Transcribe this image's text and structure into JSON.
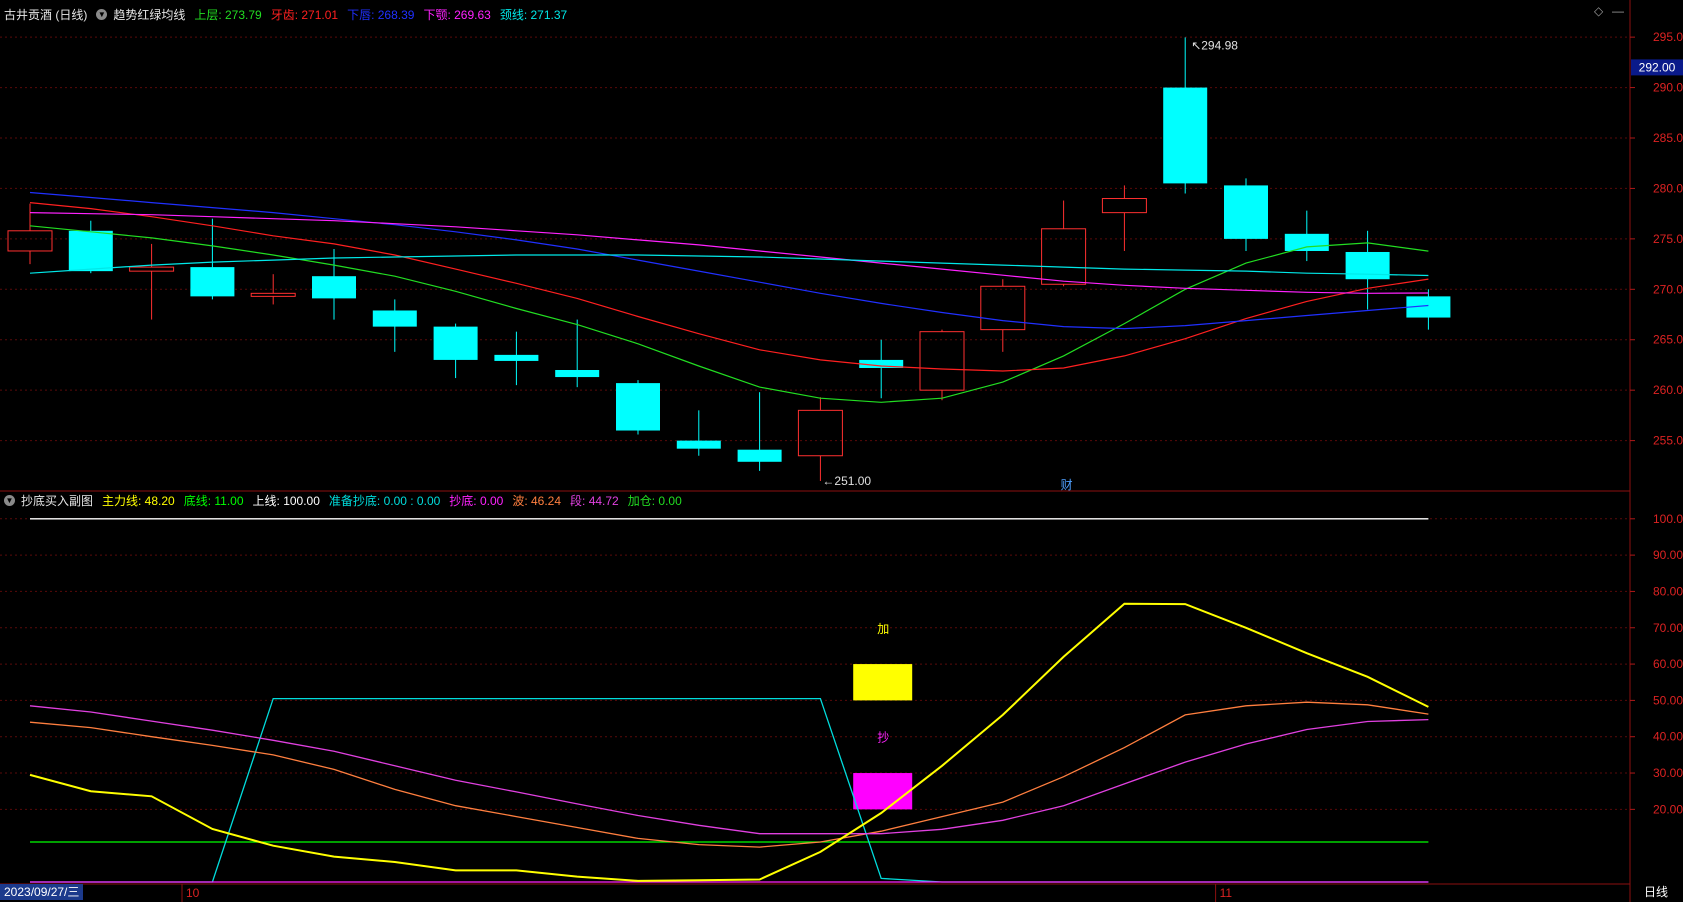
{
  "top_header": {
    "stock": "古井贡酒 (日线)",
    "indicator": "趋势红绿均线",
    "items": [
      {
        "label": "上层: 273.79",
        "color": "#22dd22"
      },
      {
        "label": "牙齿: 271.01",
        "color": "#ff2020"
      },
      {
        "label": "下唇: 268.39",
        "color": "#2030ff"
      },
      {
        "label": "下颚: 269.63",
        "color": "#ff22ff"
      },
      {
        "label": "颈线: 271.37",
        "color": "#00e8e8"
      }
    ]
  },
  "sub_header": {
    "title": "抄底买入副图",
    "items": [
      {
        "label": "主力线: 48.20",
        "color": "#ffff00"
      },
      {
        "label": "底线: 11.00",
        "color": "#00ff00"
      },
      {
        "label": "上线: 100.00",
        "color": "#ffffff"
      },
      {
        "label": "准备抄底: 0.00 : 0.00",
        "color": "#00dddd"
      },
      {
        "label": "抄底: 0.00",
        "color": "#ff22ff"
      },
      {
        "label": "波: 46.24",
        "color": "#ff7f3f"
      },
      {
        "label": "段: 44.72",
        "color": "#e040e0"
      },
      {
        "label": "加仓: 0.00",
        "color": "#22dd22"
      }
    ]
  },
  "corner_icons": {
    "diamond": "◇",
    "dash": "—"
  },
  "price_tag": "292.00",
  "date_label": "2023/09/27/三",
  "period_label": "日线",
  "x_labels": [
    {
      "text": "10",
      "index": 2.5
    },
    {
      "text": "11",
      "index": 19.5
    }
  ],
  "chart_data": [
    {
      "type": "candlestick",
      "ylim": [
        250.5,
        296.5
      ],
      "yticks": [
        "255.0",
        "260.0",
        "265.0",
        "270.0",
        "275.0",
        "280.0",
        "285.0",
        "290.0",
        "295.0"
      ],
      "candles": [
        {
          "o": 273.8,
          "h": 278.5,
          "l": 272.5,
          "c": 275.8
        },
        {
          "o": 275.8,
          "h": 276.8,
          "l": 271.6,
          "c": 271.8
        },
        {
          "o": 271.8,
          "h": 274.5,
          "l": 267.0,
          "c": 272.2
        },
        {
          "o": 272.2,
          "h": 277.0,
          "l": 269.0,
          "c": 269.3
        },
        {
          "o": 269.3,
          "h": 271.5,
          "l": 268.5,
          "c": 269.6
        },
        {
          "o": 271.3,
          "h": 274.0,
          "l": 267.0,
          "c": 269.1
        },
        {
          "o": 267.9,
          "h": 269.0,
          "l": 263.8,
          "c": 266.3
        },
        {
          "o": 266.3,
          "h": 266.6,
          "l": 261.2,
          "c": 263.0
        },
        {
          "o": 263.5,
          "h": 265.8,
          "l": 260.5,
          "c": 262.9
        },
        {
          "o": 262.0,
          "h": 267.0,
          "l": 260.3,
          "c": 261.3
        },
        {
          "o": 260.7,
          "h": 261.0,
          "l": 255.6,
          "c": 256.0
        },
        {
          "o": 255.0,
          "h": 258.0,
          "l": 253.5,
          "c": 254.2
        },
        {
          "o": 254.1,
          "h": 259.8,
          "l": 252.0,
          "c": 252.9
        },
        {
          "o": 253.5,
          "h": 259.3,
          "l": 251.0,
          "c": 258.0
        },
        {
          "o": 263.0,
          "h": 265.0,
          "l": 259.2,
          "c": 262.2
        },
        {
          "o": 260.0,
          "h": 266.0,
          "l": 259.0,
          "c": 265.8
        },
        {
          "o": 266.0,
          "h": 271.0,
          "l": 263.8,
          "c": 270.3
        },
        {
          "o": 270.5,
          "h": 278.8,
          "l": 270.3,
          "c": 276.0
        },
        {
          "o": 277.6,
          "h": 280.3,
          "l": 273.8,
          "c": 279.0
        },
        {
          "o": 290.0,
          "h": 294.98,
          "l": 279.5,
          "c": 280.5
        },
        {
          "o": 280.3,
          "h": 281.0,
          "l": 273.8,
          "c": 275.0
        },
        {
          "o": 275.5,
          "h": 277.8,
          "l": 272.8,
          "c": 273.8
        },
        {
          "o": 273.7,
          "h": 275.8,
          "l": 268.0,
          "c": 271.0
        },
        {
          "o": 269.3,
          "h": 270.0,
          "l": 266.0,
          "c": 267.2
        }
      ],
      "series": [
        {
          "name": "上层",
          "color": "#22dd22",
          "values": [
            276.3,
            275.7,
            275.1,
            274.3,
            273.4,
            272.4,
            271.3,
            269.8,
            268.1,
            266.5,
            264.6,
            262.4,
            260.3,
            259.2,
            258.8,
            259.2,
            260.8,
            263.4,
            266.6,
            270.0,
            272.6,
            274.2,
            274.6,
            273.79
          ]
        },
        {
          "name": "牙齿",
          "color": "#ff2020",
          "values": [
            278.6,
            278.0,
            277.2,
            276.3,
            275.3,
            274.5,
            273.4,
            272.0,
            270.6,
            269.1,
            267.3,
            265.6,
            264.0,
            263.0,
            262.4,
            262.1,
            261.9,
            262.2,
            263.4,
            265.1,
            267.1,
            268.8,
            270.1,
            271.01
          ]
        },
        {
          "name": "下唇",
          "color": "#2030ff",
          "values": [
            279.6,
            279.1,
            278.6,
            278.1,
            277.6,
            277.0,
            276.4,
            275.7,
            274.9,
            274.0,
            272.9,
            271.8,
            270.7,
            269.6,
            268.6,
            267.7,
            266.9,
            266.3,
            266.1,
            266.4,
            266.9,
            267.4,
            267.9,
            268.39
          ]
        },
        {
          "name": "下颚",
          "color": "#ff22ff",
          "values": [
            277.6,
            277.5,
            277.4,
            277.2,
            277.0,
            276.8,
            276.5,
            276.2,
            275.8,
            275.4,
            274.9,
            274.4,
            273.8,
            273.2,
            272.6,
            272.0,
            271.4,
            270.8,
            270.4,
            270.1,
            269.9,
            269.7,
            269.6,
            269.63
          ]
        },
        {
          "name": "颈线",
          "color": "#00e8e8",
          "values": [
            271.6,
            272.0,
            272.4,
            272.7,
            272.9,
            273.1,
            273.2,
            273.3,
            273.4,
            273.4,
            273.4,
            273.3,
            273.2,
            273.0,
            272.8,
            272.6,
            272.4,
            272.2,
            272.0,
            271.9,
            271.8,
            271.6,
            271.5,
            271.37
          ]
        }
      ],
      "annotations": [
        {
          "text": "294.98",
          "index": 19,
          "value": 294.98
        },
        {
          "text": "251.00",
          "index": 13,
          "value": 251.0
        },
        {
          "text": "财",
          "index": 17,
          "value": 251.0
        }
      ]
    },
    {
      "type": "line",
      "ylim": [
        0,
        106
      ],
      "yticks": [
        "20.00",
        "30.00",
        "40.00",
        "50.00",
        "60.00",
        "70.00",
        "80.00",
        "90.00",
        "100.0"
      ],
      "series": [
        {
          "name": "主力线",
          "color": "#ffff00",
          "values": [
            29.5,
            25,
            23.6,
            14.6,
            10,
            7,
            5.5,
            3.2,
            3.2,
            1.5,
            0.3,
            0.5,
            0.7,
            8.3,
            19,
            32,
            46,
            62,
            76.6,
            76.5,
            70,
            63,
            56.5,
            48.2
          ]
        },
        {
          "name": "底线",
          "color": "#00ff00",
          "values": [
            11,
            11,
            11,
            11,
            11,
            11,
            11,
            11,
            11,
            11,
            11,
            11,
            11,
            11,
            11,
            11,
            11,
            11,
            11,
            11,
            11,
            11,
            11,
            11
          ]
        },
        {
          "name": "上线",
          "color": "#ffffff",
          "values": [
            100,
            100,
            100,
            100,
            100,
            100,
            100,
            100,
            100,
            100,
            100,
            100,
            100,
            100,
            100,
            100,
            100,
            100,
            100,
            100,
            100,
            100,
            100,
            100
          ]
        },
        {
          "name": "准备抄底",
          "color": "#00dddd",
          "values": [
            0,
            0,
            0,
            0,
            50.5,
            50.5,
            50.5,
            50.5,
            50.5,
            50.5,
            50.5,
            50.5,
            50.5,
            50.5,
            1,
            0,
            0,
            0,
            0,
            0,
            0,
            0,
            0,
            0
          ]
        },
        {
          "name": "抄底",
          "color": "#ff22ff",
          "values": [
            0,
            0,
            0,
            0,
            0,
            0,
            0,
            0,
            0,
            0,
            0,
            0,
            0,
            0,
            0,
            0,
            0,
            0,
            0,
            0,
            0,
            0,
            0,
            0
          ]
        },
        {
          "name": "波",
          "color": "#ff7f3f",
          "values": [
            44,
            42.5,
            40,
            37.6,
            35,
            31,
            25.5,
            21,
            18,
            15,
            12,
            10.3,
            9.6,
            11,
            14,
            18,
            22,
            29,
            37,
            46,
            48.5,
            49.5,
            48.8,
            46.24
          ]
        },
        {
          "name": "段",
          "color": "#e040e0",
          "values": [
            48.5,
            46.8,
            44.3,
            41.8,
            39,
            36,
            32,
            28,
            24.8,
            21.5,
            18.3,
            15.6,
            13.3,
            13.3,
            13.3,
            14.5,
            17,
            21,
            27,
            33,
            38,
            42,
            44.2,
            44.72
          ]
        }
      ],
      "annotations": [
        {
          "text": "加",
          "index": 14,
          "value": 70,
          "color": "#ffff00"
        },
        {
          "text": "抄",
          "index": 14,
          "value": 40,
          "color": "#ff22ff"
        }
      ],
      "blocks": [
        {
          "index": 14,
          "from": 50,
          "to": 60,
          "color": "#ffff00"
        },
        {
          "index": 14,
          "from": 20,
          "to": 30,
          "color": "#ff00ff"
        }
      ]
    }
  ]
}
